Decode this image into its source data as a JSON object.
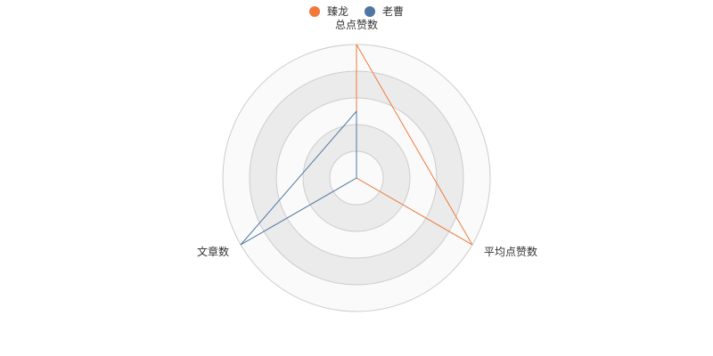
{
  "chart_data": {
    "type": "radar",
    "indicators": [
      "总点赞数",
      "平均点赞数",
      "文章数"
    ],
    "series": [
      {
        "name": "臻龙",
        "values": [
          1.0,
          1.0,
          0.0
        ],
        "color": "#f07a3c"
      },
      {
        "name": "老曹",
        "values": [
          0.5,
          0.0,
          1.0
        ],
        "color": "#4f76a3"
      }
    ],
    "max": 1,
    "rings": 5,
    "legend_position": "top-center",
    "colors": {
      "ring_light": "#fafafa",
      "ring_dark": "#ebebeb",
      "ring_line": "#cccccc"
    }
  }
}
